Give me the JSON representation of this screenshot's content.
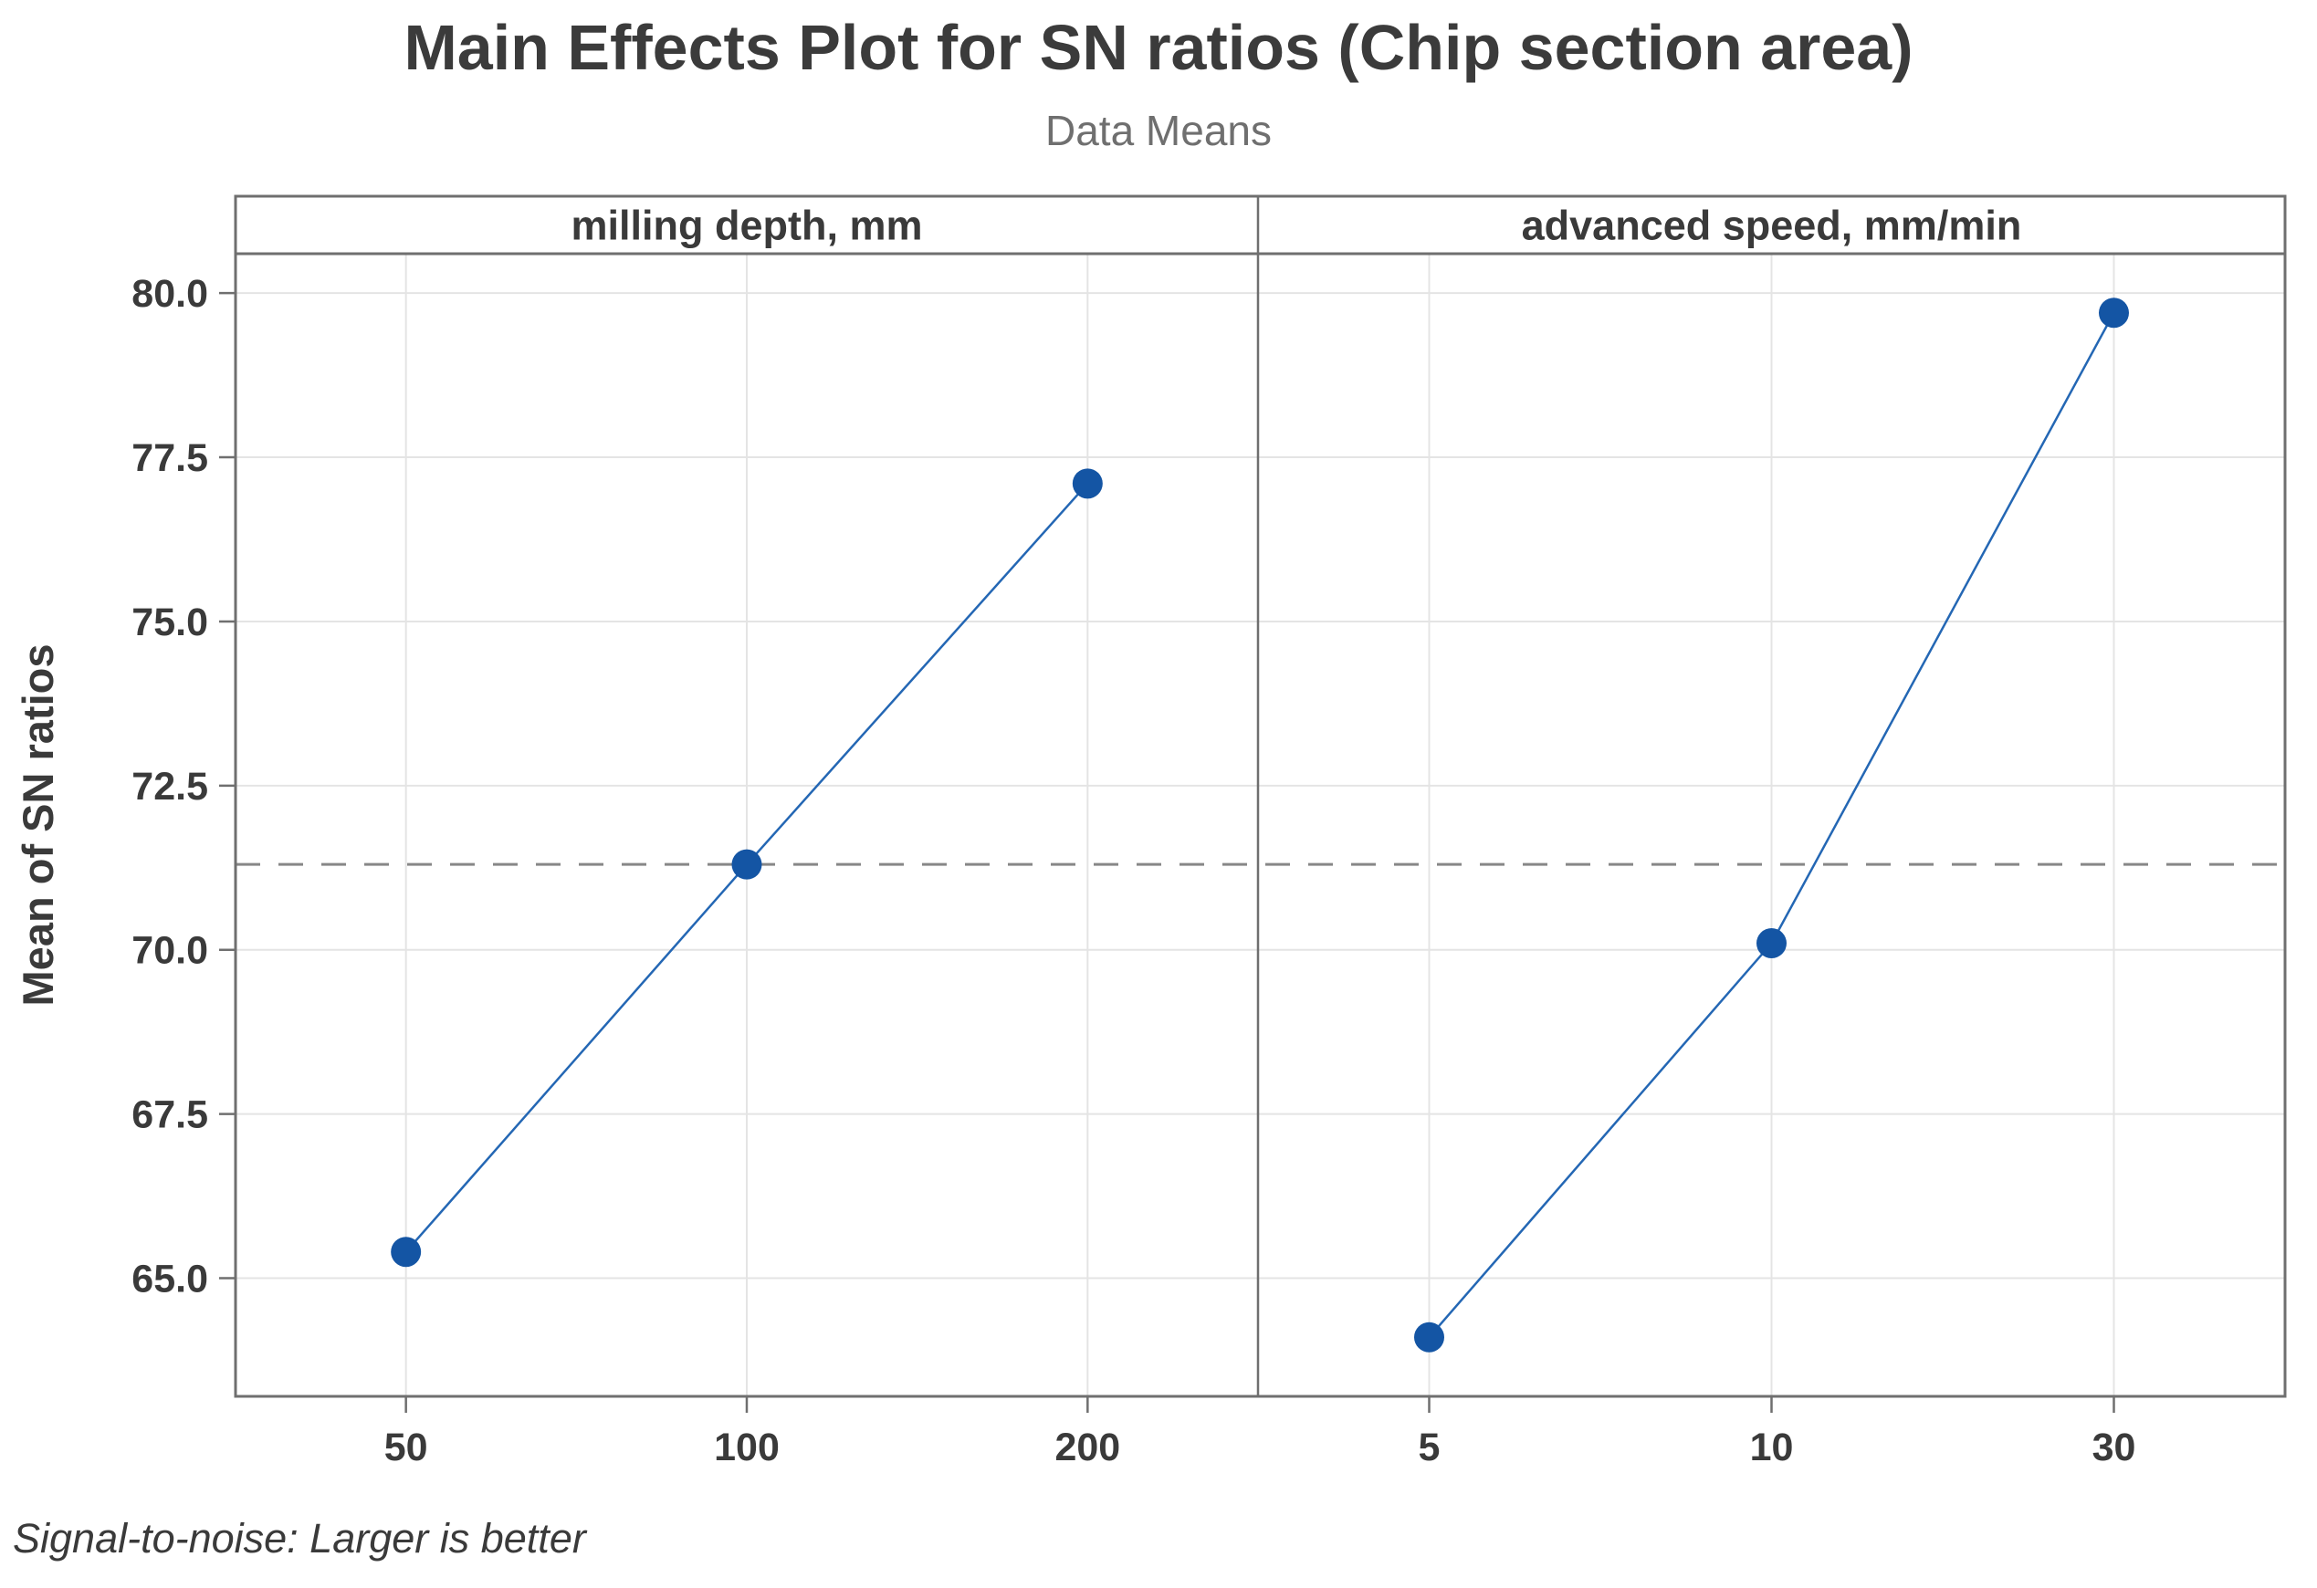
{
  "chart_data": {
    "type": "line",
    "title": "Main Effects Plot for SN ratios (Chip section area)",
    "subtitle": "Data Means",
    "ylabel": "Mean of SN ratios",
    "ylim": [
      63.2,
      80.6
    ],
    "yticks": [
      65.0,
      67.5,
      70.0,
      72.5,
      75.0,
      77.5,
      80.0
    ],
    "ytick_labels": [
      "65.0",
      "67.5",
      "70.0",
      "72.5",
      "75.0",
      "77.5",
      "80.0"
    ],
    "grid": true,
    "legend": "none",
    "reference_line": {
      "value": 71.3,
      "style": "dashed"
    },
    "panels": [
      {
        "label": "milling depth, mm",
        "categories": [
          "50",
          "100",
          "200"
        ],
        "values": [
          65.4,
          71.3,
          77.1
        ]
      },
      {
        "label": "advanced speed, mm/min",
        "categories": [
          "5",
          "10",
          "30"
        ],
        "values": [
          64.1,
          70.1,
          79.7
        ]
      }
    ],
    "footnote": "Signal-to-noise: Larger is better",
    "colors": {
      "point": "#1455a4",
      "line": "#2467b4",
      "reference_line": "#878787",
      "gridline": "#e4e4e4",
      "axis": "#6f6f6f",
      "text": "#3a3a3a",
      "subtitle_text": "#6f6f6f"
    }
  }
}
